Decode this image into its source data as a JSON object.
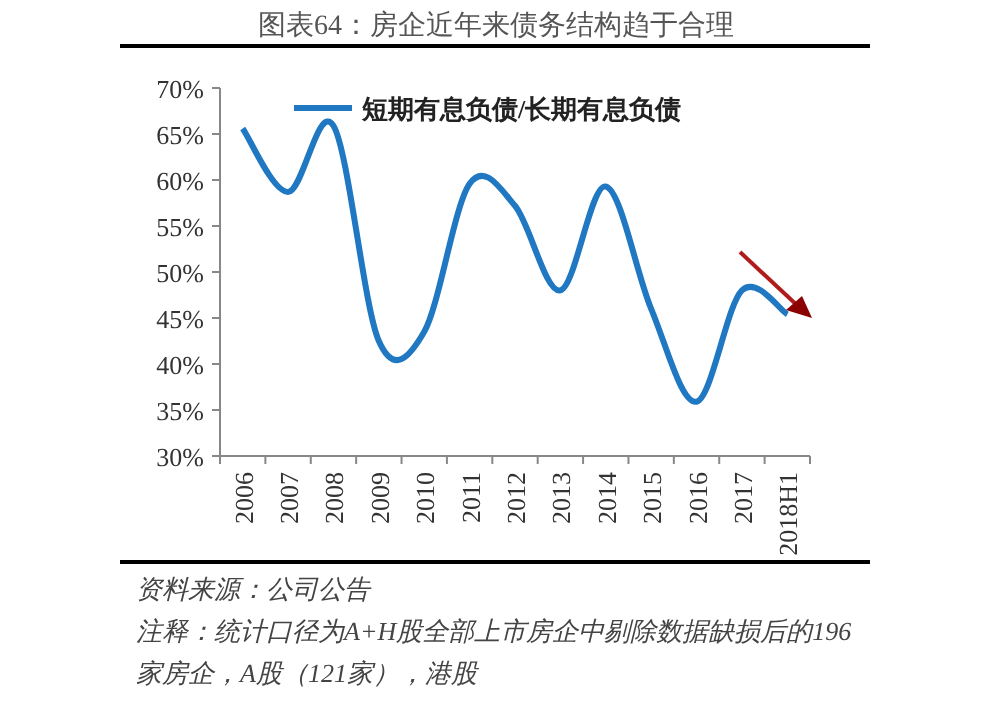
{
  "chart_data": {
    "type": "line",
    "title": "图表64：房企近年来债务结构趋于合理",
    "categories": [
      "2006",
      "2007",
      "2008",
      "2009",
      "2010",
      "2011",
      "2012",
      "2013",
      "2014",
      "2015",
      "2016",
      "2017",
      "2018H1"
    ],
    "series": [
      {
        "name": "短期有息负债/长期有息负债",
        "color": "#1f78c1",
        "values": [
          65.6,
          58.7,
          65.9,
          42.5,
          43.5,
          59.6,
          57.2,
          48.0,
          59.3,
          46.0,
          35.9,
          48.0,
          45.4
        ]
      }
    ],
    "ylim": [
      30,
      70
    ],
    "yticks": [
      {
        "value": 30,
        "label": "30%"
      },
      {
        "value": 35,
        "label": "35%"
      },
      {
        "value": 40,
        "label": "40%"
      },
      {
        "value": 45,
        "label": "45%"
      },
      {
        "value": 50,
        "label": "50%"
      },
      {
        "value": 55,
        "label": "55%"
      },
      {
        "value": 60,
        "label": "60%"
      },
      {
        "value": 65,
        "label": "65%"
      },
      {
        "value": 70,
        "label": "70%"
      }
    ],
    "grid": false,
    "legend": "top",
    "annotations": [
      "资料来源：公司公告",
      "注释：统计口径为A+H股全部上市房企中剔除数据缺损后的196家房企，A股（121家），港股"
    ]
  }
}
